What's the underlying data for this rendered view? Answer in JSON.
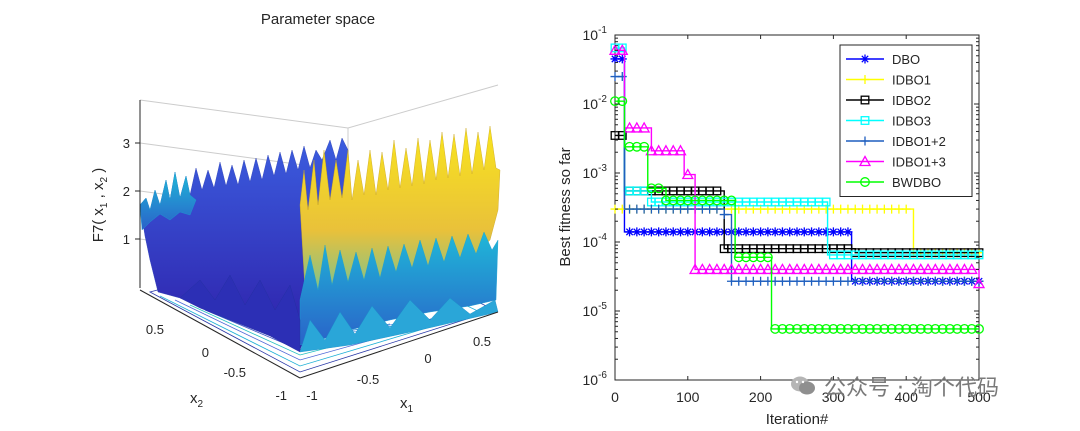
{
  "left_panel": {
    "title": "Parameter space",
    "zlabel_main": "F7( x",
    "zlabel_sub1": "1",
    "zlabel_sep": " , x",
    "zlabel_sub2": "2",
    "zlabel_end": " )",
    "x1_label_main": "x",
    "x1_label_sub": "1",
    "x2_label_main": "x",
    "x2_label_sub": "2",
    "z_ticks": [
      "1",
      "2",
      "3"
    ],
    "x1_ticks": [
      "-1",
      "-0.5",
      "0",
      "0.5"
    ],
    "x2_ticks": [
      "0.5",
      "0",
      "-0.5",
      "-1"
    ]
  },
  "watermark": {
    "text": "公众号 · 淘个代码"
  },
  "colors": {
    "DBO": "#0000ff",
    "IDBO1": "#ffff00",
    "IDBO2": "#000000",
    "IDBO3": "#00ffff",
    "IDBO1+2": "#1f5fbf",
    "IDBO1+3": "#ff00ff",
    "BWDBO": "#00ff00"
  },
  "chart_data": {
    "type": "line",
    "title": "",
    "xlabel": "Iteration#",
    "ylabel": "Best fitness so far",
    "xlim": [
      0,
      500
    ],
    "ylim": [
      1e-06,
      0.1
    ],
    "yscale": "log",
    "xticks": [
      "0",
      "100",
      "200",
      "300",
      "400",
      "500"
    ],
    "yticks": [
      {
        "base": "10",
        "exp": "-6"
      },
      {
        "base": "10",
        "exp": "-5"
      },
      {
        "base": "10",
        "exp": "-4"
      },
      {
        "base": "10",
        "exp": "-3"
      },
      {
        "base": "10",
        "exp": "-2"
      },
      {
        "base": "10",
        "exp": "-1"
      }
    ],
    "legend_position": "top-right",
    "series": [
      {
        "name": "DBO",
        "marker": "asterisk",
        "start": 0.045,
        "steps": [
          [
            1,
            0.045
          ],
          [
            13,
            0.00014
          ],
          [
            325,
            2.7e-05
          ],
          [
            500,
            2.7e-05
          ]
        ]
      },
      {
        "name": "IDBO1",
        "marker": "plus",
        "start": 0.0003,
        "steps": [
          [
            1,
            0.0003
          ],
          [
            400,
            0.0003
          ],
          [
            410,
            7e-05
          ],
          [
            500,
            7e-05
          ]
        ]
      },
      {
        "name": "IDBO2",
        "marker": "square",
        "start": 0.0035,
        "steps": [
          [
            1,
            0.0035
          ],
          [
            13,
            0.00055
          ],
          [
            150,
            8e-05
          ],
          [
            325,
            8e-05
          ],
          [
            330,
            7e-05
          ],
          [
            500,
            7e-05
          ]
        ]
      },
      {
        "name": "IDBO3",
        "marker": "square",
        "start": 0.065,
        "steps": [
          [
            1,
            0.065
          ],
          [
            13,
            0.00055
          ],
          [
            50,
            0.00038
          ],
          [
            290,
            0.00038
          ],
          [
            292,
            6.5e-05
          ],
          [
            500,
            6.5e-05
          ]
        ]
      },
      {
        "name": "IDBO1+2",
        "marker": "plus",
        "start": 0.025,
        "steps": [
          [
            1,
            0.025
          ],
          [
            13,
            0.0003
          ],
          [
            150,
            0.00025
          ],
          [
            160,
            2.7e-05
          ],
          [
            500,
            2.7e-05
          ]
        ]
      },
      {
        "name": "IDBO1+3",
        "marker": "triangle",
        "start": 0.06,
        "steps": [
          [
            1,
            0.06
          ],
          [
            13,
            0.0045
          ],
          [
            50,
            0.0021
          ],
          [
            95,
            0.00095
          ],
          [
            110,
            4e-05
          ],
          [
            500,
            2.5e-05
          ]
        ]
      },
      {
        "name": "BWDBO",
        "marker": "circle",
        "start": 0.011,
        "steps": [
          [
            1,
            0.011
          ],
          [
            13,
            0.0024
          ],
          [
            45,
            0.0006
          ],
          [
            70,
            0.0004
          ],
          [
            165,
            6e-05
          ],
          [
            215,
            5.5e-06
          ],
          [
            500,
            5.5e-06
          ]
        ]
      }
    ]
  }
}
